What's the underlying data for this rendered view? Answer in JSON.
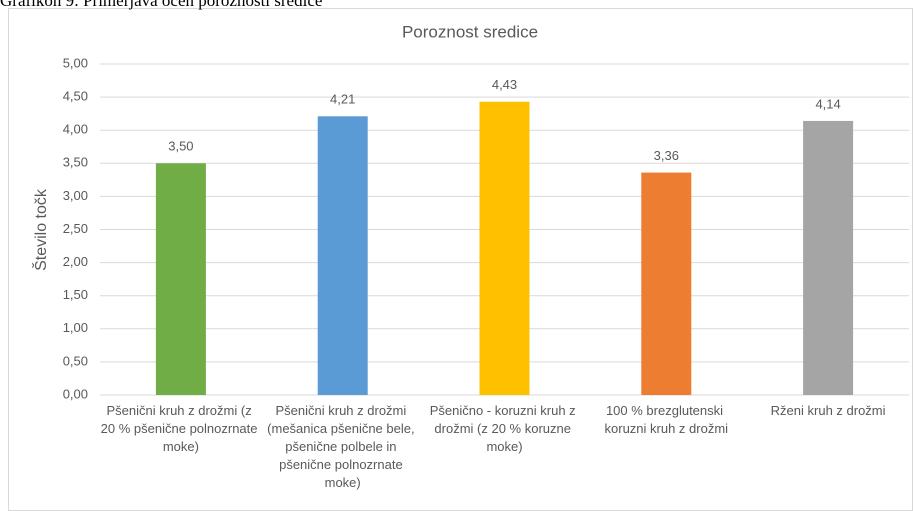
{
  "caption": "Grafikon 9: Primerjava ocen poroznosti sredice",
  "chart_data": {
    "type": "bar",
    "title": "Poroznost sredice",
    "y_label": "Število točk",
    "categories": [
      "Pšenični kruh z drožmi (z 20 % pšenične polnozrnate moke)",
      "Pšenični kruh z drožmi (mešanica pšenične bele, pšenične polbele in pšenične polnozrnate moke)",
      "Pšenično - koruzni kruh z drožmi (z 20 % koruzne moke)",
      "100 % brezglutenski koruzni kruh z drožmi",
      "Rženi kruh z drožmi"
    ],
    "values": [
      3.5,
      4.21,
      4.43,
      3.36,
      4.14
    ],
    "value_labels": [
      "3,50",
      "4,21",
      "4,43",
      "3,36",
      "4,14"
    ],
    "colors": [
      "#70ad47",
      "#5b9bd5",
      "#ffc000",
      "#ed7d31",
      "#a5a5a5"
    ],
    "ylim": [
      0,
      5
    ],
    "yticks": [
      {
        "value": 0,
        "label": "0,00"
      },
      {
        "value": 0.5,
        "label": "0,50"
      },
      {
        "value": 1,
        "label": "1,00"
      },
      {
        "value": 1.5,
        "label": "1,50"
      },
      {
        "value": 2,
        "label": "2,00"
      },
      {
        "value": 2.5,
        "label": "2,50"
      },
      {
        "value": 3,
        "label": "3,00"
      },
      {
        "value": 3.5,
        "label": "3,50"
      },
      {
        "value": 4,
        "label": "4,00"
      },
      {
        "value": 4.5,
        "label": "4,50"
      },
      {
        "value": 5,
        "label": "5,00"
      }
    ],
    "grid": true
  }
}
